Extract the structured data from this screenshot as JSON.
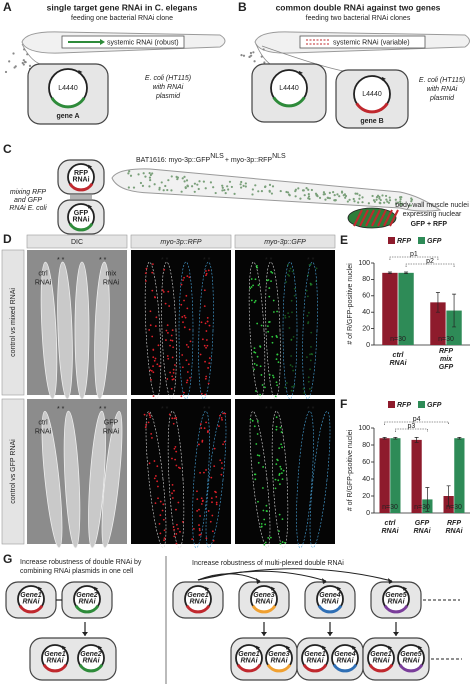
{
  "panel_a": {
    "letter": "A",
    "title": "single target gene RNAi in C. elegans",
    "subtitle": "feeding one bacterial RNAi clone",
    "systemic": "systemic RNAi (robust)",
    "plasmid": "L4440",
    "gene": "gene A",
    "bacteria": [
      "E. coli (HT115)",
      "with RNAi",
      "plasmid"
    ]
  },
  "panel_b": {
    "letter": "B",
    "title": "common double RNAi against two genes",
    "subtitle": "feeding two bacterial RNAi clones",
    "systemic": "systemic RNAi (variable)",
    "plasmid_1": "L4440",
    "plasmid_2": "L4440",
    "gene": "gene B",
    "bacteria": [
      "E. coli (HT115)",
      "with RNAi",
      "plasmid"
    ]
  },
  "panel_c": {
    "letter": "C",
    "mixing": [
      "mixing RFP",
      "and GFP",
      "RNAi E. coli"
    ],
    "rfp_clone": "RFP RNAi",
    "gfp_clone": "GFP RNAi",
    "strain": "BAT1616: myo-3p::GFP",
    "strain_sup_1": "NLS",
    "strain_plus": "+ myo-3p::RFP",
    "strain_sup_2": "NLS",
    "nuclei": [
      "body wall muscle nuclei",
      "expressing nuclear"
    ],
    "gfp": "GFP",
    "plus": "+",
    "rfp": "RFP"
  },
  "panel_d": {
    "letter": "D",
    "columns": [
      "DIC",
      "myo-3p::RFP",
      "myo-3p::GFP"
    ],
    "rows": [
      "control vs mixed RNAi",
      "control vs GFP RNAi"
    ],
    "row_1_labels": [
      "ctrl RNAi",
      "mix RNAi"
    ],
    "row_2_labels": [
      "ctrl RNAi",
      "GFP RNAi"
    ],
    "marker_ctrl": "* *",
    "marker_test": "* *"
  },
  "chart_data": [
    {
      "type": "bar",
      "letter": "E",
      "y_label": "# of R/GFP-positive nuclei",
      "categories": [
        "ctrl RNAi",
        "RFP mix GFP"
      ],
      "series": [
        {
          "name": "RFP",
          "color": "#8e1b2c",
          "values": [
            88,
            52
          ],
          "errors": [
            1,
            12
          ]
        },
        {
          "name": "GFP",
          "color": "#2e8b57",
          "values": [
            88,
            42
          ],
          "errors": [
            1,
            20
          ]
        }
      ],
      "ylim": [
        0,
        100
      ],
      "yticks": [
        0,
        20,
        40,
        60,
        80,
        100
      ],
      "n_labels": [
        "n=30",
        "n=30"
      ],
      "p_labels": [
        "p1",
        "p2"
      ]
    },
    {
      "type": "bar",
      "letter": "F",
      "y_label": "# of R/GFP-psoitive nuclei",
      "categories": [
        "ctrl RNAi",
        "GFP RNAi",
        "RFP RNAi"
      ],
      "series": [
        {
          "name": "RFP",
          "color": "#8e1b2c",
          "values": [
            88,
            86,
            20
          ],
          "errors": [
            1,
            3,
            12
          ]
        },
        {
          "name": "GFP",
          "color": "#2e8b57",
          "values": [
            88,
            16,
            88
          ],
          "errors": [
            1,
            14,
            1
          ]
        }
      ],
      "ylim": [
        0,
        100
      ],
      "yticks": [
        0,
        20,
        40,
        60,
        80,
        100
      ],
      "n_labels": [
        "n=30",
        "n=30",
        "n=30"
      ],
      "p_labels": [
        "p3",
        "p4"
      ]
    }
  ],
  "panel_g": {
    "letter": "G",
    "left_text": [
      "Increase robustness of double RNAi by",
      "combining RNAi plasmids in one cell"
    ],
    "right_text": "Increase robustness of multi-plexed double RNAi",
    "left_top": [
      "Gene1 RNAi",
      "Gene2 RNAi"
    ],
    "left_bottom": [
      "Gene1 RNAi",
      "Gene2 RNAi"
    ],
    "right_top": [
      "Gene1 RNAi",
      "Gene3 RNAi",
      "Gene4 RNAi",
      "Gene5 RNAi"
    ],
    "right_bottom": [
      [
        "Gene1 RNAi",
        "Gene3 RNAi"
      ],
      [
        "Gene1 RNAi",
        "Gene4 RNAi"
      ],
      [
        "Gene1 RNAi",
        "Gene5 RNAi"
      ]
    ]
  }
}
